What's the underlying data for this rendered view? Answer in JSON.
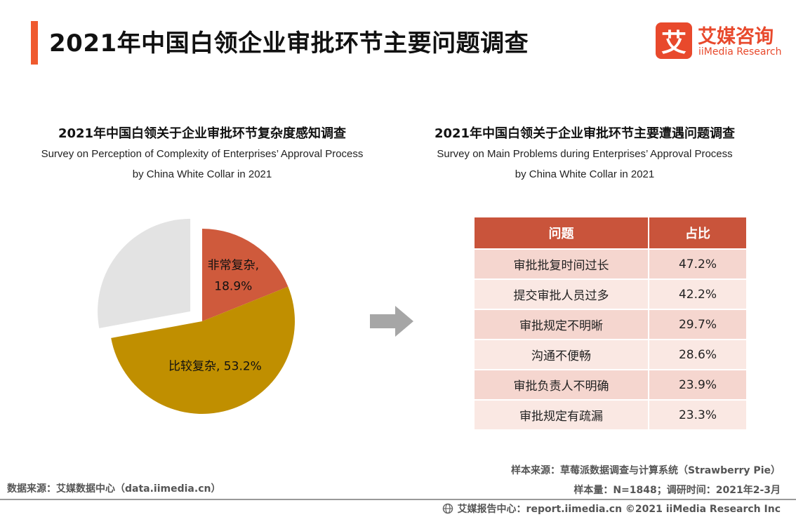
{
  "header": {
    "title": "2021年中国白领企业审批环节主要问题调查"
  },
  "brand": {
    "badge": "艾",
    "name_cn": "艾媒咨询",
    "name_en": "iiMedia Research",
    "color": "#e8492c"
  },
  "left": {
    "title_cn": "2021年中国白领关于企业审批环节复杂度感知调查",
    "title_en_1": "Survey on Perception of Complexity of Enterprises’  Approval Process",
    "title_en_2": "by China White Collar in 2021"
  },
  "right": {
    "title_cn": "2021年中国白领关于企业审批环节主要遭遇问题调查",
    "title_en_1": "Survey on Main Problems during Enterprises’  Approval Process",
    "title_en_2": "by China White Collar in 2021"
  },
  "chart_data": [
    {
      "type": "pie",
      "slices": [
        {
          "label": "非常复杂",
          "value": 18.9,
          "color": "#cf5a3c",
          "display_line1": "非常复杂,",
          "display_line2": "18.9%"
        },
        {
          "label": "比较复杂",
          "value": 53.2,
          "color": "#c08f00",
          "display_line1": "比较复杂, 53.2%"
        },
        {
          "label": "",
          "value": 27.9,
          "color": "#e3e3e3",
          "exploded": true
        }
      ]
    },
    {
      "type": "table",
      "columns": [
        "问题",
        "占比"
      ],
      "rows": [
        [
          "审批批复时间过长",
          "47.2%"
        ],
        [
          "提交审批人员过多",
          "42.2%"
        ],
        [
          "审批规定不明晰",
          "29.7%"
        ],
        [
          "沟通不便畅",
          "28.6%"
        ],
        [
          "审批负责人不明确",
          "23.9%"
        ],
        [
          "审批规定有疏漏",
          "23.3%"
        ]
      ],
      "header_color": "#c9543b"
    }
  ],
  "footer": {
    "sample_source": "样本来源：草莓派数据调查与计算系统（Strawberry  Pie）",
    "sample_size": "样本量：N=1848；调研时间：2021年2-3月",
    "data_source": "数据来源：艾媒数据中心（data.iimedia.cn）",
    "copyright": "艾媒报告中心：report.iimedia.cn ©2021  iiMedia Research  Inc"
  }
}
